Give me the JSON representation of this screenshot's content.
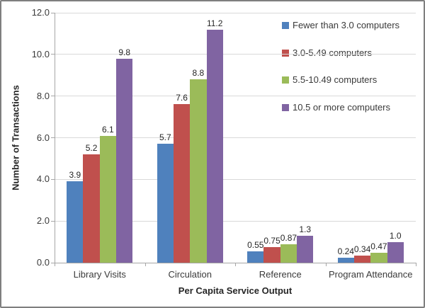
{
  "chart_data": {
    "type": "bar",
    "title": "",
    "xlabel": "Per Capita Service Output",
    "ylabel": "Number of Transactions",
    "categories": [
      "Library Visits",
      "Circulation",
      "Reference",
      "Program Attendance"
    ],
    "series": [
      {
        "name": "Fewer than 3.0 computers",
        "color": "#4F81BD",
        "values": [
          3.9,
          5.7,
          0.55,
          0.24
        ],
        "labels": [
          "3.9",
          "5.7",
          "0.55",
          "0.24"
        ]
      },
      {
        "name": "3.0-5.49 computers",
        "color": "#C0504D",
        "values": [
          5.2,
          7.6,
          0.75,
          0.34
        ],
        "labels": [
          "5.2",
          "7.6",
          "0.75",
          "0.34"
        ]
      },
      {
        "name": "5.5-10.49 computers",
        "color": "#9BBB59",
        "values": [
          6.1,
          8.8,
          0.87,
          0.47
        ],
        "labels": [
          "6.1",
          "8.8",
          "0.87",
          "0.47"
        ]
      },
      {
        "name": "10.5 or more computers",
        "color": "#8064A2",
        "values": [
          9.8,
          11.2,
          1.3,
          1.0
        ],
        "labels": [
          "9.8",
          "11.2",
          "1.3",
          "1.0"
        ]
      }
    ],
    "ylim": [
      0,
      12
    ],
    "ytick_step": 2,
    "ytick_labels": [
      "0.0",
      "2.0",
      "4.0",
      "6.0",
      "8.0",
      "10.0",
      "12.0"
    ],
    "grid": true,
    "legend_position": "right-overlay"
  }
}
